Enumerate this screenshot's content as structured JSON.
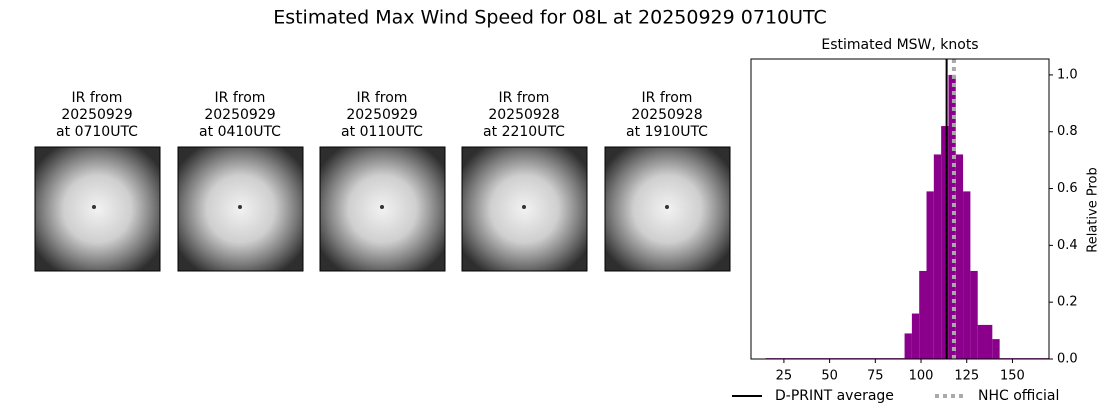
{
  "title": "Estimated Max Wind Speed for 08L at 20250929 0710UTC",
  "panels": [
    {
      "lines": [
        "IR from",
        "20250929",
        "at 0710UTC"
      ]
    },
    {
      "lines": [
        "IR from",
        "20250929",
        "at 0410UTC"
      ]
    },
    {
      "lines": [
        "IR from",
        "20250929",
        "at 0110UTC"
      ]
    },
    {
      "lines": [
        "IR from",
        "20250928",
        "at 2210UTC"
      ]
    },
    {
      "lines": [
        "IR from",
        "20250928",
        "at 1910UTC"
      ]
    }
  ],
  "chart_data": {
    "type": "histogram",
    "title": "Estimated MSW, knots",
    "y_label": "Relative Prob",
    "bins": [
      15,
      91,
      95,
      99,
      103,
      107,
      111,
      115,
      119,
      123,
      127,
      131,
      135,
      139,
      143,
      170
    ],
    "values": [
      0.003,
      0.09,
      0.16,
      0.31,
      0.59,
      0.72,
      0.82,
      1.0,
      0.72,
      0.59,
      0.31,
      0.12,
      0.12,
      0.07,
      0.003
    ],
    "color": "#8b008b",
    "lines": [
      {
        "name": "D-PRINT average",
        "x": 114,
        "color": "#000000",
        "style": "solid"
      },
      {
        "name": "NHC official",
        "x": 118,
        "color": "#aaaaaa",
        "style": "dotted"
      }
    ],
    "xlim": [
      7,
      170
    ],
    "xticks": [
      25,
      50,
      75,
      100,
      125,
      150
    ],
    "ylim": [
      0,
      1.056
    ],
    "yticks": [
      {
        "value": 0,
        "label": "0.0"
      },
      0.2,
      0.4,
      0.6,
      0.8,
      {
        "value": 1,
        "label": "1.0"
      }
    ],
    "y_axis_side": "right",
    "legend": "bottom"
  }
}
